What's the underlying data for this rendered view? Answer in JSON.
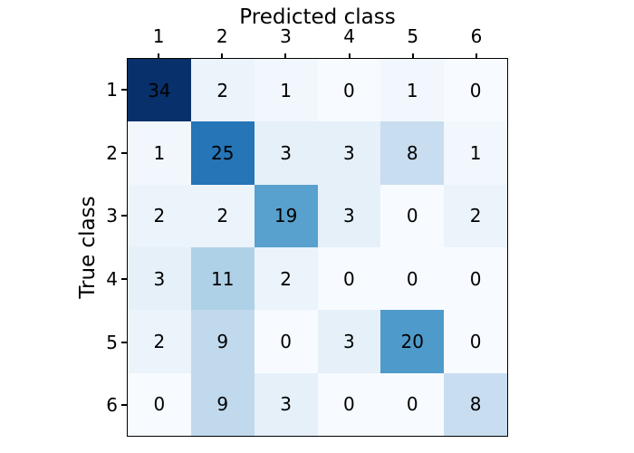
{
  "figure": {
    "background": "#ffffff",
    "axes_border_color": "#000000"
  },
  "chart_data": {
    "type": "heatmap",
    "subtype": "confusion-matrix",
    "xlabel": "Predicted class",
    "ylabel": "True class",
    "x_tick_labels": [
      "1",
      "2",
      "3",
      "4",
      "5",
      "6"
    ],
    "y_tick_labels": [
      "1",
      "2",
      "3",
      "4",
      "5",
      "6"
    ],
    "values": [
      [
        34,
        2,
        1,
        0,
        1,
        0
      ],
      [
        1,
        25,
        3,
        3,
        8,
        1
      ],
      [
        2,
        2,
        19,
        3,
        0,
        2
      ],
      [
        3,
        11,
        2,
        0,
        0,
        0
      ],
      [
        2,
        9,
        0,
        3,
        20,
        0
      ],
      [
        0,
        9,
        3,
        0,
        0,
        8
      ]
    ],
    "colormap": "Blues",
    "vmin": 0,
    "vmax": 34,
    "value_colors": {
      "0": "#f7fbff",
      "1": "#f1f7fd",
      "2": "#ebf3fb",
      "3": "#e5f0f9",
      "8": "#c9ddf0",
      "9": "#c1d9ed",
      "11": "#afd1e7",
      "19": "#58a1ce",
      "20": "#4e9acb",
      "25": "#2575b7",
      "34": "#08306b"
    },
    "cell_text_color": "#000000",
    "grid": false,
    "legend": "none",
    "x_axis_position": "top"
  }
}
